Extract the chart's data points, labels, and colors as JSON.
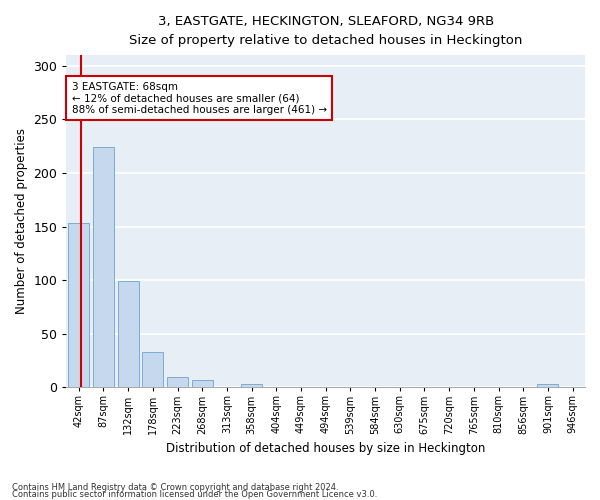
{
  "title": "3, EASTGATE, HECKINGTON, SLEAFORD, NG34 9RB",
  "subtitle": "Size of property relative to detached houses in Heckington",
  "xlabel": "Distribution of detached houses by size in Heckington",
  "ylabel": "Number of detached properties",
  "bar_color": "#c5d8ee",
  "bar_edge_color": "#7aadd4",
  "background_color": "#e8eef6",
  "grid_color": "white",
  "bin_labels": [
    "42sqm",
    "87sqm",
    "132sqm",
    "178sqm",
    "223sqm",
    "268sqm",
    "313sqm",
    "358sqm",
    "404sqm",
    "449sqm",
    "494sqm",
    "539sqm",
    "584sqm",
    "630sqm",
    "675sqm",
    "720sqm",
    "765sqm",
    "810sqm",
    "856sqm",
    "901sqm",
    "946sqm"
  ],
  "counts": [
    153,
    224,
    99,
    33,
    10,
    7,
    0,
    3,
    0,
    0,
    0,
    0,
    0,
    0,
    0,
    0,
    0,
    0,
    0,
    3,
    0
  ],
  "vline_index": 0.58,
  "vline_color": "#cc0000",
  "annotation_text": "3 EASTGATE: 68sqm\n← 12% of detached houses are smaller (64)\n88% of semi-detached houses are larger (461) →",
  "annotation_box_color": "white",
  "annotation_box_edge_color": "#cc0000",
  "ylim": [
    0,
    310
  ],
  "yticks": [
    0,
    50,
    100,
    150,
    200,
    250,
    300
  ],
  "footnote1": "Contains HM Land Registry data © Crown copyright and database right 2024.",
  "footnote2": "Contains public sector information licensed under the Open Government Licence v3.0."
}
